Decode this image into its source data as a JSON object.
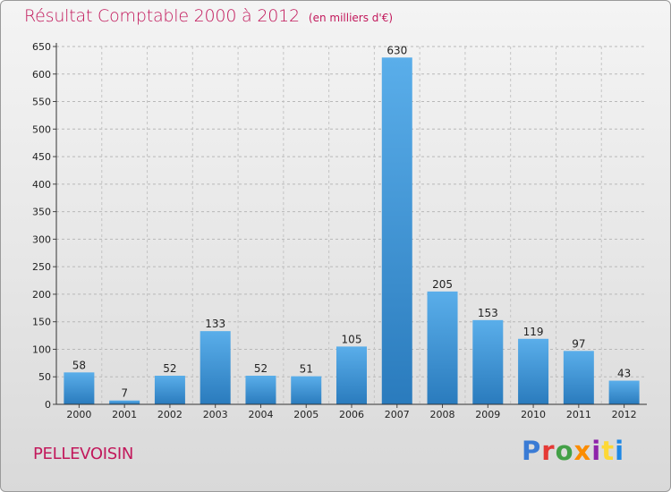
{
  "title": "Résultat Comptable 2000 à 2012",
  "subtitle": "(en milliers d'€)",
  "city": "PELLEVOISIN",
  "logo": {
    "text": "Proxiti",
    "colors": [
      "#3a7bd5",
      "#e53935",
      "#43a047",
      "#fb8c00",
      "#8e24aa",
      "#fdd835",
      "#1e88e5"
    ]
  },
  "colors": {
    "title": "#c2185b",
    "bar_top": "#5aaeea",
    "bar_bottom": "#2a7bbd"
  },
  "chart_data": {
    "type": "bar",
    "categories": [
      "2000",
      "2001",
      "2002",
      "2003",
      "2004",
      "2005",
      "2006",
      "2007",
      "2008",
      "2009",
      "2010",
      "2011",
      "2012"
    ],
    "values": [
      58,
      7,
      52,
      133,
      52,
      51,
      105,
      630,
      205,
      153,
      119,
      97,
      43
    ],
    "title": "Résultat Comptable 2000 à 2012",
    "xlabel": "",
    "ylabel": "",
    "ylim": [
      0,
      650
    ],
    "yticks": [
      0,
      50,
      100,
      150,
      200,
      250,
      300,
      350,
      400,
      450,
      500,
      550,
      600,
      650
    ],
    "grid": true
  }
}
